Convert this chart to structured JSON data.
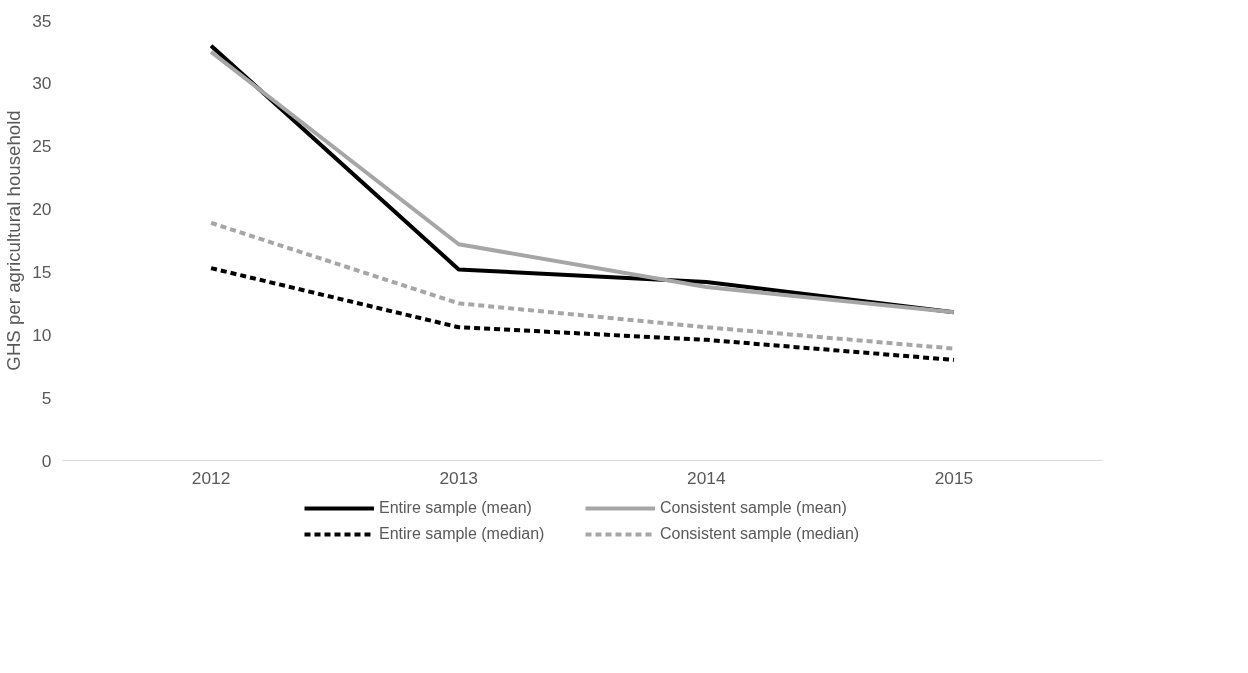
{
  "chart_data": {
    "type": "line",
    "ylabel": "GHS per agricultural household",
    "categories": [
      "2012",
      "2013",
      "2014",
      "2015"
    ],
    "series": [
      {
        "name": "Entire sample (mean)",
        "color": "#000000",
        "line_style": "solid",
        "values": [
          33.0,
          15.2,
          14.2,
          11.8
        ]
      },
      {
        "name": "Consistent sample (mean)",
        "color": "#a6a6a6",
        "line_style": "solid",
        "values": [
          32.5,
          17.2,
          13.8,
          11.8
        ]
      },
      {
        "name": "Entire sample (median)",
        "color": "#000000",
        "line_style": "dashed",
        "values": [
          15.3,
          10.6,
          9.6,
          8.0
        ]
      },
      {
        "name": "Consistent sample (median)",
        "color": "#a6a6a6",
        "line_style": "dashed",
        "values": [
          18.9,
          12.5,
          10.6,
          8.9
        ]
      }
    ],
    "ylim": [
      0,
      35
    ],
    "yticks": [
      0,
      5,
      10,
      15,
      20,
      25,
      30,
      35
    ],
    "grid": false,
    "legend": "bottom"
  }
}
